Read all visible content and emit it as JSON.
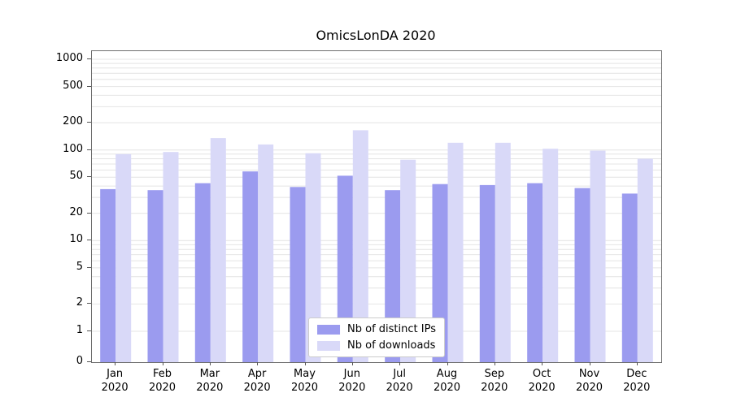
{
  "title": "OmicsLonDA 2020",
  "chart_data": {
    "type": "bar",
    "scale": "symlog",
    "title": "OmicsLonDA 2020",
    "categories": [
      "Jan",
      "Feb",
      "Mar",
      "Apr",
      "May",
      "Jun",
      "Jul",
      "Aug",
      "Sep",
      "Oct",
      "Nov",
      "Dec"
    ],
    "year": "2020",
    "series": [
      {
        "name": "Nb of distinct IPs",
        "color": "#9b9bef",
        "values": [
          37,
          36,
          43,
          58,
          39,
          52,
          36,
          42,
          41,
          43,
          38,
          33
        ]
      },
      {
        "name": "Nb of downloads",
        "color": "#d9d9f8",
        "values": [
          90,
          95,
          135,
          115,
          92,
          165,
          78,
          120,
          120,
          103,
          98,
          80
        ]
      }
    ],
    "yticks": [
      0,
      1,
      2,
      5,
      10,
      20,
      50,
      100,
      200,
      500,
      1000
    ],
    "ylim": [
      0,
      1200
    ],
    "xlabel": "",
    "ylabel": "",
    "grid": true,
    "grid_color": "#e4e4e4",
    "axis_color": "#6e6e6e",
    "legend_position": "lower center"
  }
}
